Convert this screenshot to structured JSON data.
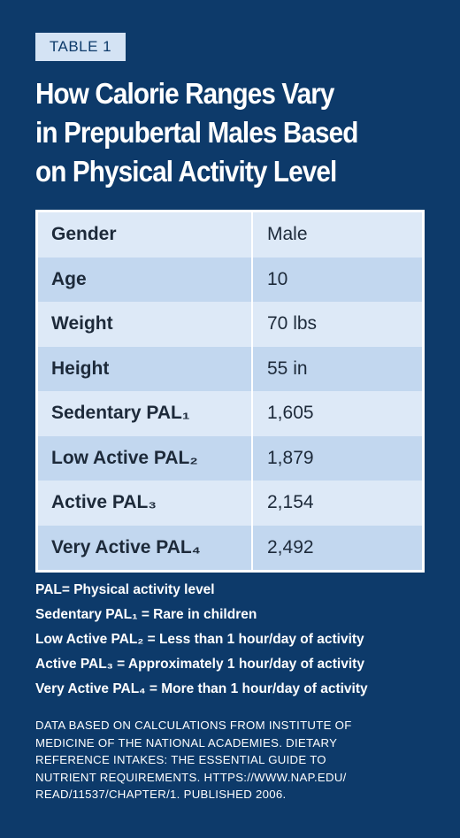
{
  "header": {
    "badge": "TABLE 1",
    "title": [
      "How Calorie Ranges Vary",
      "in Prepubertal Males Based",
      "on Physical Activity Level"
    ]
  },
  "table": {
    "rows": [
      [
        "Gender",
        "Male"
      ],
      [
        "Age",
        "10"
      ],
      [
        "Weight",
        "70 lbs"
      ],
      [
        "Height",
        "55 in"
      ],
      [
        "Sedentary PAL₁",
        "1,605"
      ],
      [
        "Low Active PAL₂",
        "1,879"
      ],
      [
        "Active PAL₃",
        "2,154"
      ],
      [
        "Very Active PAL₄",
        "2,492"
      ]
    ]
  },
  "legend": [
    "PAL= Physical activity level",
    "Sedentary PAL₁ = Rare in children",
    "Low Active PAL₂ = Less than 1 hour/day of activity",
    "Active PAL₃ = Approximately 1 hour/day of activity",
    "Very Active PAL₄ = More than 1 hour/day of activity"
  ],
  "footnote": [
    "DATA BASED ON CALCULATIONS FROM INSTITUTE OF",
    "MEDICINE OF THE NATIONAL ACADEMIES. DIETARY",
    "REFERENCE INTAKES: THE ESSENTIAL GUIDE TO",
    "NUTRIENT REQUIREMENTS. HTTPS://WWW.NAP.EDU/",
    "READ/11537/CHAPTER/1. PUBLISHED 2006."
  ]
}
